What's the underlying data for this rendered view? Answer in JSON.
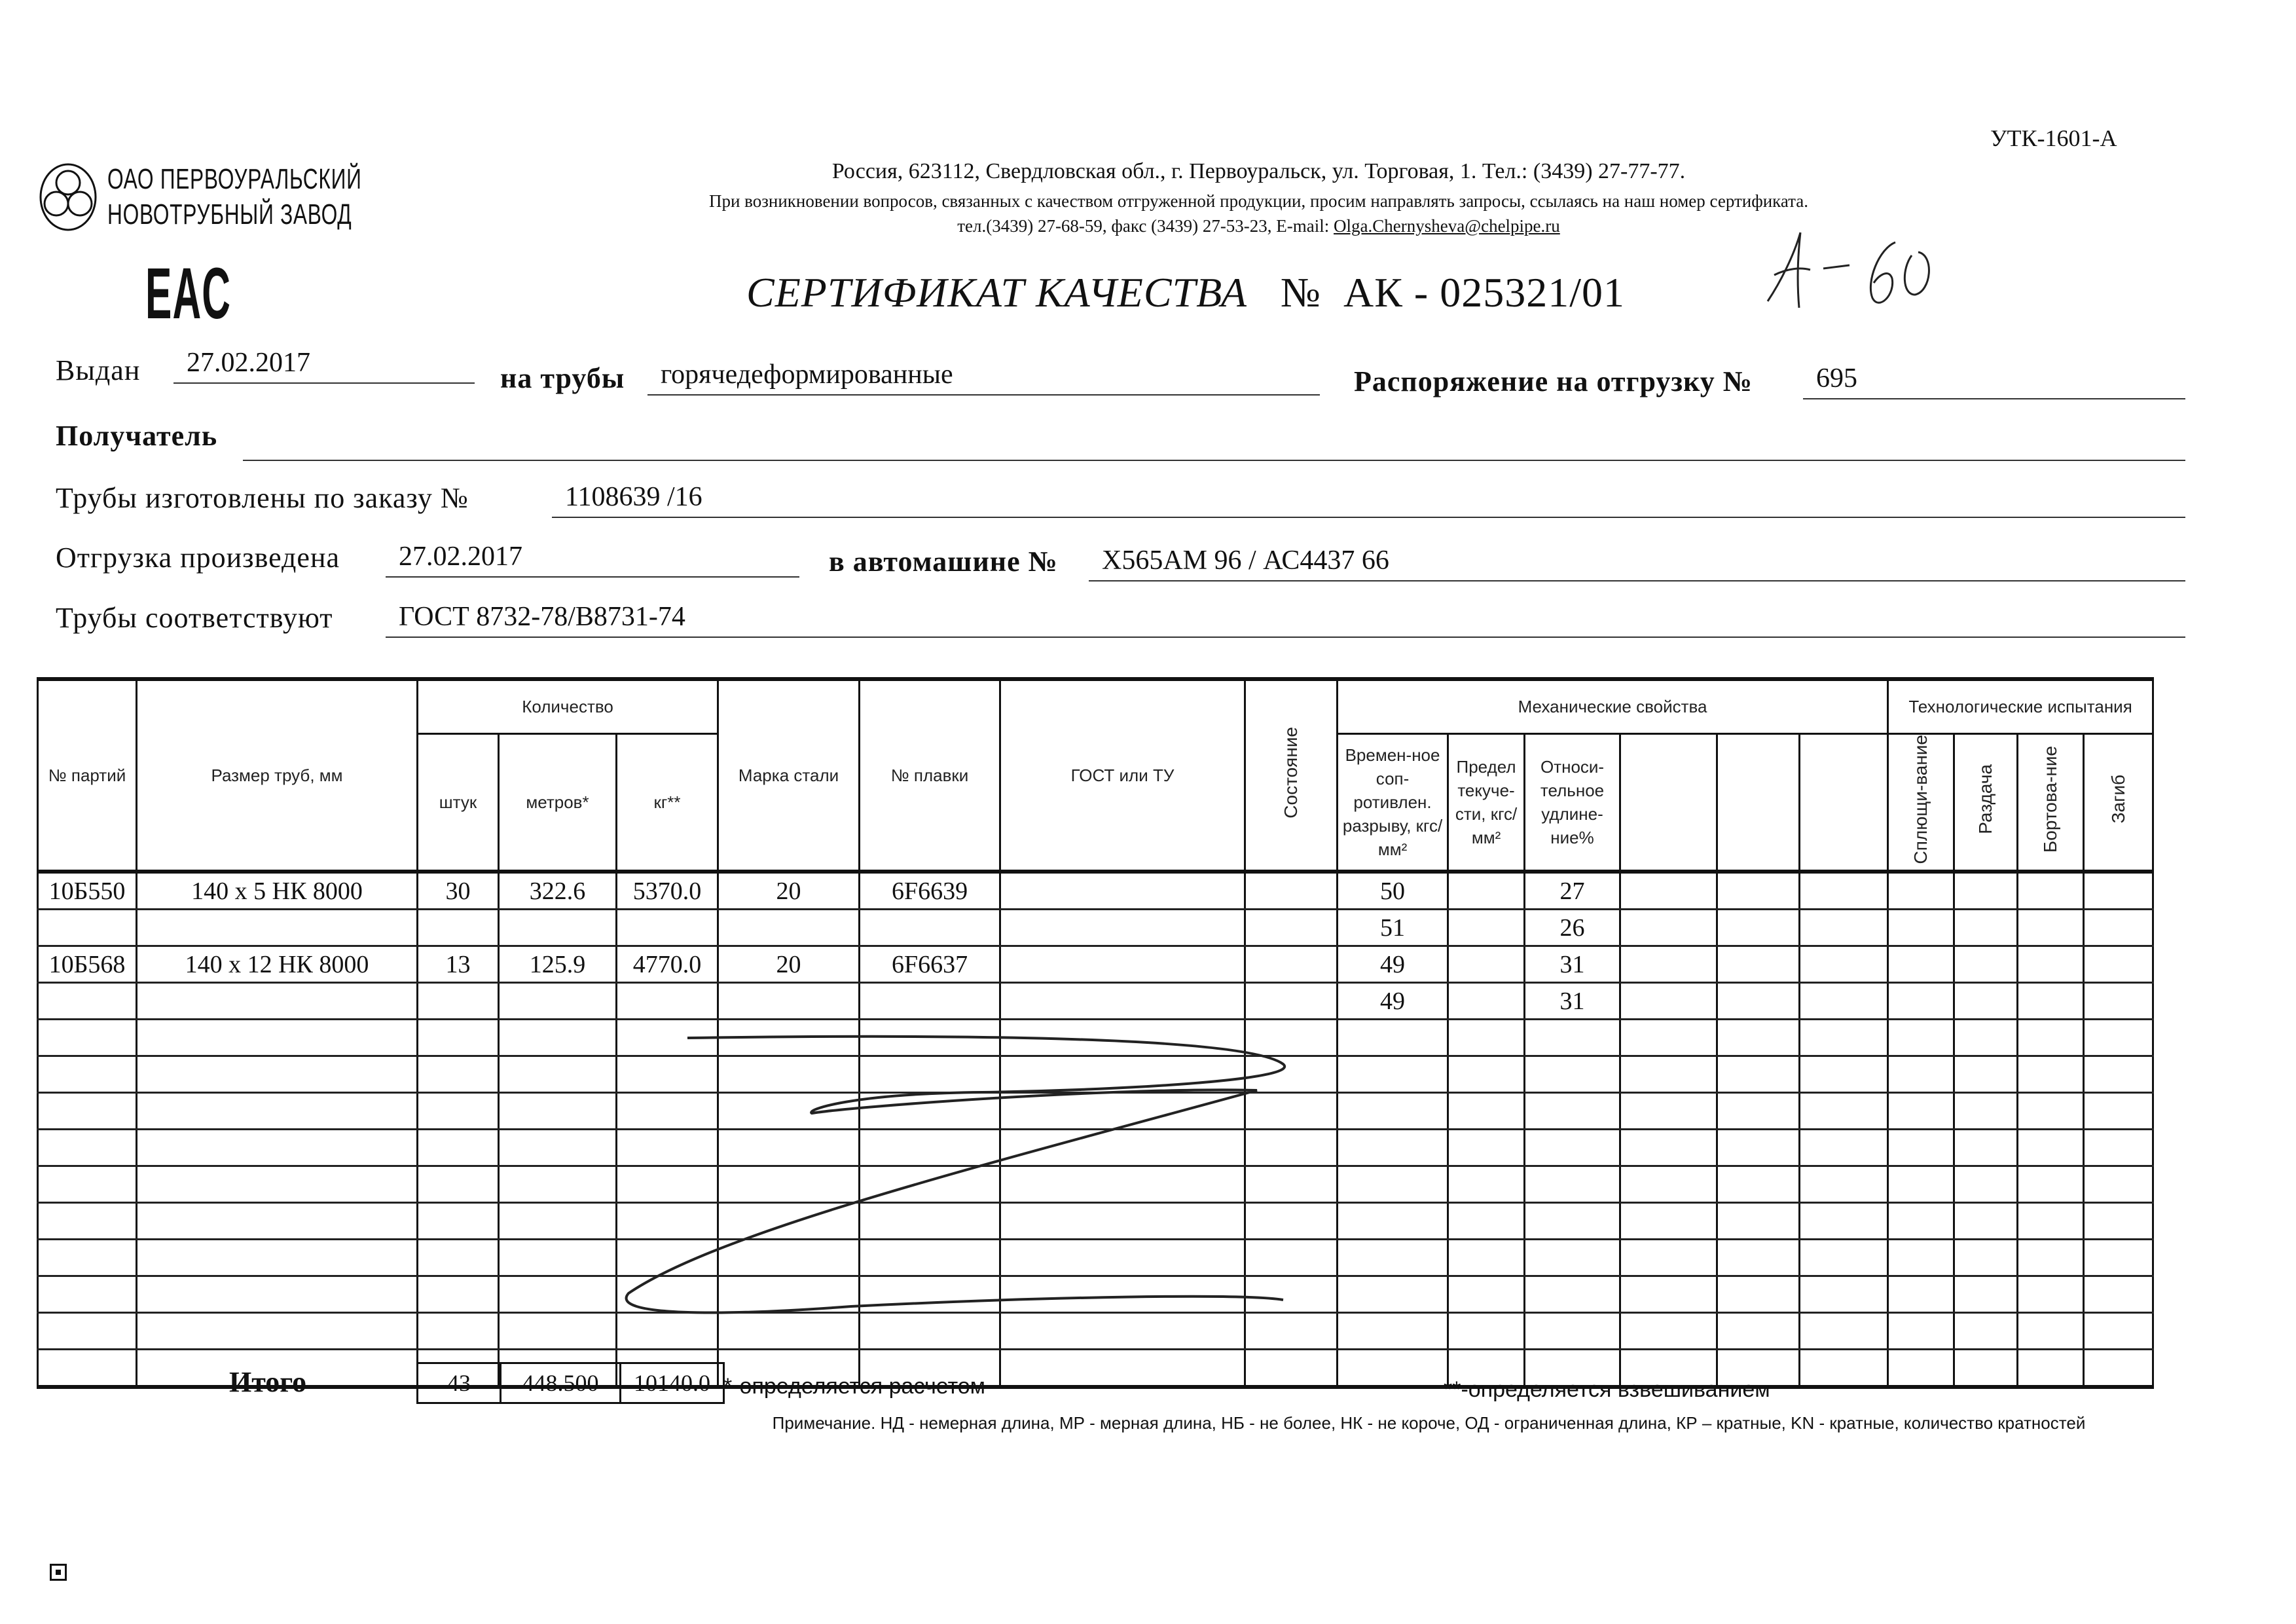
{
  "form_code": "УТК-1601-А",
  "company": {
    "name_line1": "ОАО ПЕРВОУРАЛЬСКИЙ",
    "name_line2": "НОВОТРУБНЫЙ ЗАВОД",
    "mark": "EAC"
  },
  "address": {
    "line1": "Россия, 623112, Свердловская обл., г. Первоуральск, ул. Торговая, 1. Тел.: (3439) 27-77-77.",
    "line2": "При возникновении вопросов, связанных с качеством отгруженной продукции, просим направлять запросы, ссылаясь на наш номер сертификата.",
    "line3_prefix": "тел.(3439) 27-68-59, факс (3439) 27-53-23, E-mail: ",
    "email": "Olga.Chernysheva@chelpipe.ru"
  },
  "title": {
    "text": "СЕРТИФИКАТ КАЧЕСТВА",
    "number_label": "№",
    "number": "АК - 025321/01"
  },
  "handwritten_note": "А-60",
  "form": {
    "issued_label": "Выдан",
    "issued_value": "27.02.2017",
    "pipes_label": "на трубы",
    "pipes_value": "горячедеформированные",
    "order_ship_label": "Распоряжение на отгрузку №",
    "order_ship_value": "695",
    "recipient_label": "Получатель",
    "recipient_value": "",
    "made_by_order_label": "Трубы изготовлены по заказу №",
    "made_by_order_value": "1108639   /16",
    "shipped_label": "Отгрузка произведена",
    "shipped_value": "27.02.2017",
    "vehicle_label": "в автомашине №",
    "vehicle_value": "Х565АМ 96 / АС4437 66",
    "conform_label": "Трубы соответствуют",
    "conform_value": "ГОСТ 8732-78/В8731-74"
  },
  "table": {
    "headers": {
      "party": "№ партий",
      "size": "Размер труб, мм",
      "quantity": "Количество",
      "pcs": "штук",
      "meters": "метров*",
      "kg": "кг**",
      "steel": "Марка стали",
      "heat": "№ плавки",
      "gost": "ГОСТ или ТУ",
      "state": "Состояние",
      "mech": "Механические свойства",
      "tensile": "Времен-ное соп-ротивлен. разрыву, кгс/мм²",
      "yield": "Предел текуче-сти, кгс/мм²",
      "elong": "Относи-тельное удлине-ние%",
      "tech": "Технологические испытания",
      "flatten": "Сплющи-вание",
      "expand": "Раздача",
      "flange": "Бортова-ние",
      "bend": "Загиб"
    },
    "rows": [
      {
        "party": "10Б550",
        "size": "140 x 5 НК 8000",
        "pcs": "30",
        "meters": "322.6",
        "kg": "5370.0",
        "steel": "20",
        "heat": "6F6639",
        "tensile": "50",
        "elong": "27"
      },
      {
        "tensile": "51",
        "elong": "26"
      },
      {
        "party": "10Б568",
        "size": "140 x 12 НК 8000",
        "pcs": "13",
        "meters": "125.9",
        "kg": "4770.0",
        "steel": "20",
        "heat": "6F6637",
        "tensile": "49",
        "elong": "31"
      },
      {
        "tensile": "49",
        "elong": "31"
      },
      {},
      {},
      {},
      {},
      {},
      {},
      {},
      {},
      {},
      {}
    ],
    "totals": {
      "label": "Итого",
      "pcs": "43",
      "meters": "448.500",
      "kg": "10140.0"
    }
  },
  "footnotes": {
    "calc": "*-определяется расчетом",
    "weigh": "**-определяется взвешиванием",
    "note": "Примечание. НД - немерная длина, МР - мерная длина, НБ - не более, НК - не короче, ОД - ограниченная длина, КР – кратные, KN - кратные, количество кратностей"
  }
}
